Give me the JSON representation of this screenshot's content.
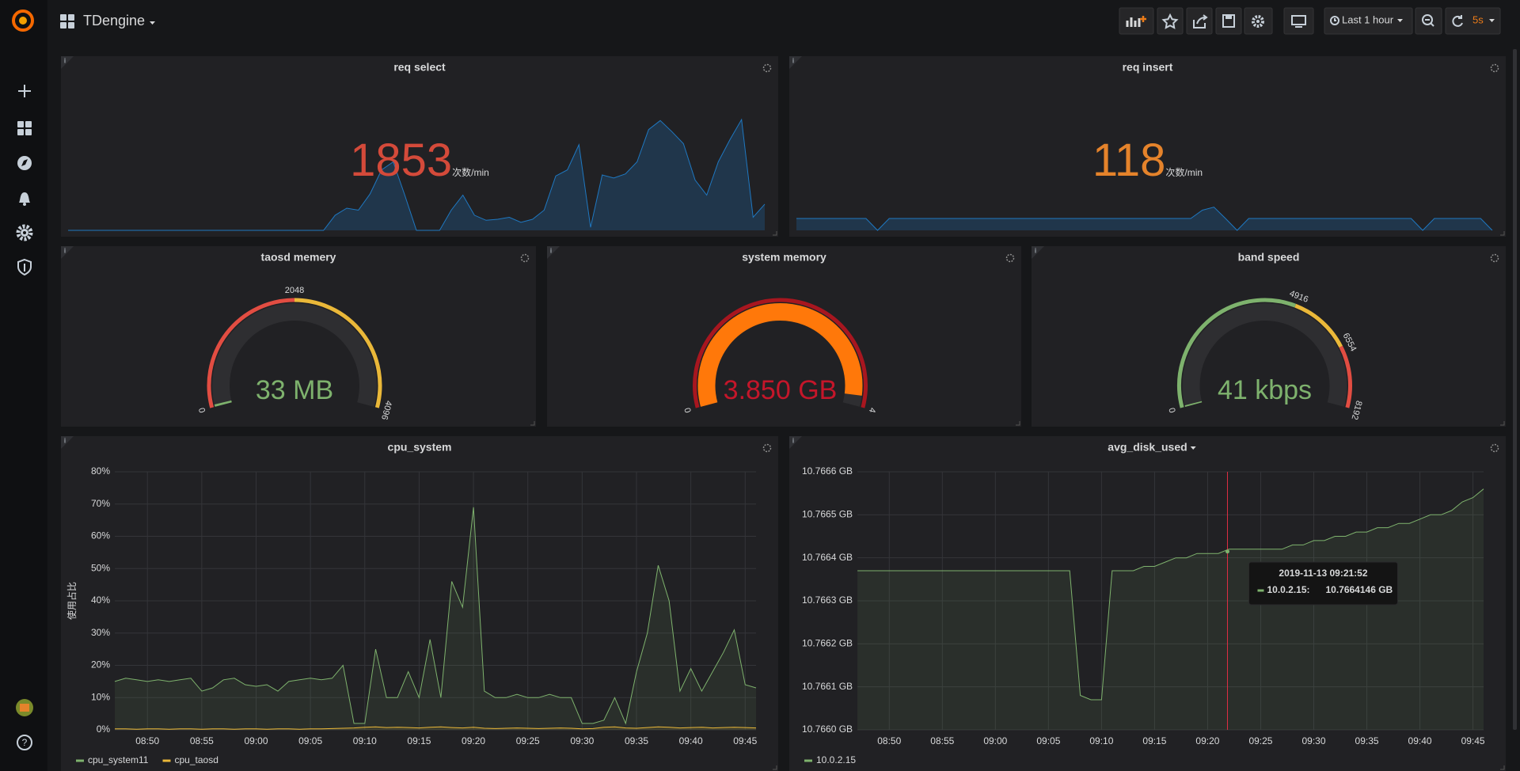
{
  "header": {
    "title": "TDengine",
    "time_range": "Last 1 hour",
    "refresh": "5s"
  },
  "panels": [
    {
      "type": "singlestat",
      "title": "req select",
      "value": 1853,
      "unit": "次数/min",
      "color": "#d44a3a",
      "sparkline": {
        "color": "#1f78c1",
        "values": [
          0,
          0,
          0,
          0,
          0,
          0,
          0,
          0,
          0,
          0,
          0,
          0,
          0,
          0,
          0,
          0,
          0,
          0,
          0,
          0,
          0,
          0,
          0,
          150,
          220,
          200,
          360,
          600,
          680,
          350,
          0,
          0,
          0,
          200,
          350,
          150,
          100,
          110,
          130,
          80,
          110,
          200,
          540,
          600,
          850,
          30,
          550,
          520,
          560,
          680,
          1000,
          1090,
          980,
          860,
          500,
          350,
          680,
          900,
          1100,
          130,
          260
        ]
      }
    },
    {
      "type": "singlestat",
      "title": "req insert",
      "value": 118,
      "unit": "次数/min",
      "color": "#e5832b",
      "sparkline": {
        "color": "#1f78c1",
        "values": [
          118,
          118,
          118,
          118,
          118,
          118,
          118,
          0,
          118,
          118,
          118,
          118,
          118,
          118,
          118,
          118,
          118,
          118,
          118,
          118,
          118,
          118,
          118,
          118,
          118,
          118,
          118,
          118,
          118,
          118,
          118,
          118,
          118,
          118,
          118,
          200,
          230,
          118,
          0,
          118,
          118,
          118,
          118,
          118,
          118,
          118,
          118,
          118,
          118,
          118,
          118,
          118,
          118,
          118,
          0,
          118,
          118,
          118,
          118,
          118,
          0
        ]
      }
    },
    {
      "type": "gauge",
      "title": "taosd memery",
      "value": 33,
      "value_label": "33 MB",
      "color": "#7eb26d",
      "ticks": [
        0,
        2048,
        4096
      ],
      "band_colors": [
        "#e24d42",
        "#eab839"
      ]
    },
    {
      "type": "gauge",
      "title": "system memory",
      "value": 3.85,
      "value_label": "3.850 GB",
      "color": "#ff780a",
      "text_color": "#c4162a",
      "ticks": [
        0,
        4
      ],
      "band_colors": [
        "#a8161f"
      ]
    },
    {
      "type": "gauge",
      "title": "band speed",
      "value": 41,
      "value_label": "41 kbps",
      "color": "#7eb26d",
      "ticks": [
        0,
        4916,
        6554,
        8192
      ],
      "band_colors": [
        "#7eb26d",
        "#eab839",
        "#e24d42"
      ]
    },
    {
      "type": "line",
      "title": "cpu_system",
      "y_label": "使用占比",
      "grid": true,
      "xlim": [
        0,
        59
      ],
      "xticks": [
        {
          "value": 3,
          "label": "08:50"
        },
        {
          "value": 8,
          "label": "08:55"
        },
        {
          "value": 13,
          "label": "09:00"
        },
        {
          "value": 18,
          "label": "09:05"
        },
        {
          "value": 23,
          "label": "09:10"
        },
        {
          "value": 28,
          "label": "09:15"
        },
        {
          "value": 33,
          "label": "09:20"
        },
        {
          "value": 38,
          "label": "09:25"
        },
        {
          "value": 43,
          "label": "09:30"
        },
        {
          "value": 48,
          "label": "09:35"
        },
        {
          "value": 53,
          "label": "09:40"
        },
        {
          "value": 58,
          "label": "09:45"
        }
      ],
      "ylim": [
        0,
        80
      ],
      "yticks": [
        {
          "value": 0,
          "label": "0%"
        },
        {
          "value": 10,
          "label": "10%"
        },
        {
          "value": 20,
          "label": "20%"
        },
        {
          "value": 30,
          "label": "30%"
        },
        {
          "value": 40,
          "label": "40%"
        },
        {
          "value": 50,
          "label": "50%"
        },
        {
          "value": 60,
          "label": "60%"
        },
        {
          "value": 70,
          "label": "70%"
        },
        {
          "value": 80,
          "label": "80%"
        }
      ],
      "series": [
        {
          "name": "cpu_system11",
          "color": "#7eb26d",
          "values": [
            15,
            16,
            15.5,
            15,
            15.5,
            15,
            15.5,
            16,
            12,
            13,
            15.5,
            16,
            14,
            13.5,
            14,
            12,
            15,
            15.5,
            16,
            15.5,
            16,
            20,
            2,
            2,
            25,
            10,
            10,
            18,
            10,
            28,
            10,
            46,
            38,
            69,
            12,
            10,
            10,
            11,
            10,
            10,
            11,
            10,
            10,
            2,
            2,
            3,
            10,
            2,
            18,
            30,
            51,
            40,
            12,
            19,
            12,
            18,
            24,
            31,
            14,
            13
          ]
        },
        {
          "name": "cpu_taosd",
          "color": "#eab839",
          "values": [
            0.3,
            0.3,
            0.2,
            0.3,
            0.3,
            0.2,
            0.3,
            0.3,
            0.2,
            0.3,
            0.3,
            0.2,
            0.3,
            0.3,
            0.2,
            0.3,
            0.3,
            0.2,
            0.3,
            0.3,
            0.4,
            0.5,
            0.6,
            0.8,
            0.9,
            0.7,
            0.8,
            0.7,
            0.6,
            0.8,
            0.9,
            0.7,
            0.6,
            0.8,
            0.5,
            0.4,
            0.5,
            0.6,
            0.5,
            0.4,
            0.5,
            0.6,
            0.5,
            0.3,
            0.4,
            0.8,
            0.9,
            0.6,
            0.5,
            0.7,
            0.9,
            0.8,
            0.6,
            0.7,
            0.8,
            0.6,
            0.7,
            0.8,
            0.7,
            0.6
          ]
        }
      ]
    },
    {
      "type": "line",
      "title": "avg_disk_used",
      "grid": true,
      "xlim": [
        0,
        59
      ],
      "xticks": [
        {
          "value": 3,
          "label": "08:50"
        },
        {
          "value": 8,
          "label": "08:55"
        },
        {
          "value": 13,
          "label": "09:00"
        },
        {
          "value": 18,
          "label": "09:05"
        },
        {
          "value": 23,
          "label": "09:10"
        },
        {
          "value": 28,
          "label": "09:15"
        },
        {
          "value": 33,
          "label": "09:20"
        },
        {
          "value": 38,
          "label": "09:25"
        },
        {
          "value": 43,
          "label": "09:30"
        },
        {
          "value": 48,
          "label": "09:35"
        },
        {
          "value": 53,
          "label": "09:40"
        },
        {
          "value": 58,
          "label": "09:45"
        }
      ],
      "ylim": [
        10.766,
        10.7666
      ],
      "yticks": [
        {
          "value": 10.766,
          "label": "10.7660 GB"
        },
        {
          "value": 10.7661,
          "label": "10.7661 GB"
        },
        {
          "value": 10.7662,
          "label": "10.7662 GB"
        },
        {
          "value": 10.7663,
          "label": "10.7663 GB"
        },
        {
          "value": 10.7664,
          "label": "10.7664 GB"
        },
        {
          "value": 10.7665,
          "label": "10.7665 GB"
        },
        {
          "value": 10.7666,
          "label": "10.7666 GB"
        }
      ],
      "series": [
        {
          "name": "10.0.2.15",
          "color": "#7eb26d",
          "values": [
            10.76637,
            10.76637,
            10.76637,
            10.76637,
            10.76637,
            10.76637,
            10.76637,
            10.76637,
            10.76637,
            10.76637,
            10.76637,
            10.76637,
            10.76637,
            10.76637,
            10.76637,
            10.76637,
            10.76637,
            10.76637,
            10.76637,
            10.76637,
            10.76637,
            10.76608,
            10.76607,
            10.76607,
            10.76637,
            10.76637,
            10.76637,
            10.76638,
            10.76638,
            10.76639,
            10.7664,
            10.7664,
            10.76641,
            10.76641,
            10.76641,
            10.76642,
            10.76642,
            10.76642,
            10.76642,
            10.76642,
            10.76642,
            10.76643,
            10.76643,
            10.76644,
            10.76644,
            10.76645,
            10.76645,
            10.76646,
            10.76646,
            10.76647,
            10.76647,
            10.76648,
            10.76648,
            10.76649,
            10.7665,
            10.7665,
            10.76651,
            10.76653,
            10.76654,
            10.76656
          ]
        }
      ],
      "tooltip": {
        "time": "2019-11-13 09:21:52",
        "series": "10.0.2.15:",
        "value": 10.7664146,
        "label": "10.7664146 GB"
      }
    }
  ]
}
